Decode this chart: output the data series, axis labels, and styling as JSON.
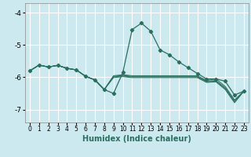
{
  "xlabel": "Humidex (Indice chaleur)",
  "background_color": "#cce9f0",
  "grid_color": "#ffffff",
  "line_color": "#2a6e5e",
  "xlim": [
    -0.5,
    23.5
  ],
  "ylim": [
    -7.4,
    -3.7
  ],
  "yticks": [
    -7,
    -6,
    -5,
    -4
  ],
  "main_y": [
    -5.8,
    -5.62,
    -5.68,
    -5.63,
    -5.72,
    -5.77,
    -5.97,
    -6.08,
    -6.38,
    -6.5,
    -5.85,
    -4.52,
    -4.32,
    -4.57,
    -5.15,
    -5.3,
    -5.52,
    -5.7,
    -5.88,
    -6.05,
    -6.05,
    -6.12,
    -6.55,
    -6.43
  ],
  "bundle_lines": [
    [
      -5.8,
      -5.62,
      -5.68,
      -5.63,
      -5.72,
      -5.77,
      -5.97,
      -6.08,
      -6.38,
      -5.95,
      -5.92,
      -5.95,
      -5.95,
      -5.95,
      -5.95,
      -5.95,
      -5.95,
      -5.95,
      -5.95,
      -6.1,
      -6.05,
      -6.28,
      -6.7,
      -6.43
    ],
    [
      -5.8,
      -5.62,
      -5.68,
      -5.63,
      -5.72,
      -5.77,
      -5.97,
      -6.08,
      -6.38,
      -5.97,
      -5.94,
      -5.97,
      -5.97,
      -5.97,
      -5.97,
      -5.97,
      -5.97,
      -5.97,
      -5.97,
      -6.12,
      -6.1,
      -6.32,
      -6.73,
      -6.43
    ],
    [
      -5.8,
      -5.62,
      -5.68,
      -5.63,
      -5.72,
      -5.77,
      -5.97,
      -6.08,
      -6.38,
      -5.99,
      -5.96,
      -5.99,
      -5.99,
      -5.99,
      -5.99,
      -5.99,
      -5.99,
      -5.99,
      -5.99,
      -6.14,
      -6.12,
      -6.35,
      -6.76,
      -6.43
    ],
    [
      -5.8,
      -5.62,
      -5.68,
      -5.63,
      -5.72,
      -5.77,
      -5.97,
      -6.08,
      -6.38,
      -6.01,
      -5.98,
      -6.01,
      -6.01,
      -6.01,
      -6.01,
      -6.01,
      -6.01,
      -6.01,
      -6.01,
      -6.16,
      -6.14,
      -6.38,
      -6.79,
      -6.43
    ]
  ],
  "xlabel_fontsize": 7,
  "tick_fontsize": 5.5
}
